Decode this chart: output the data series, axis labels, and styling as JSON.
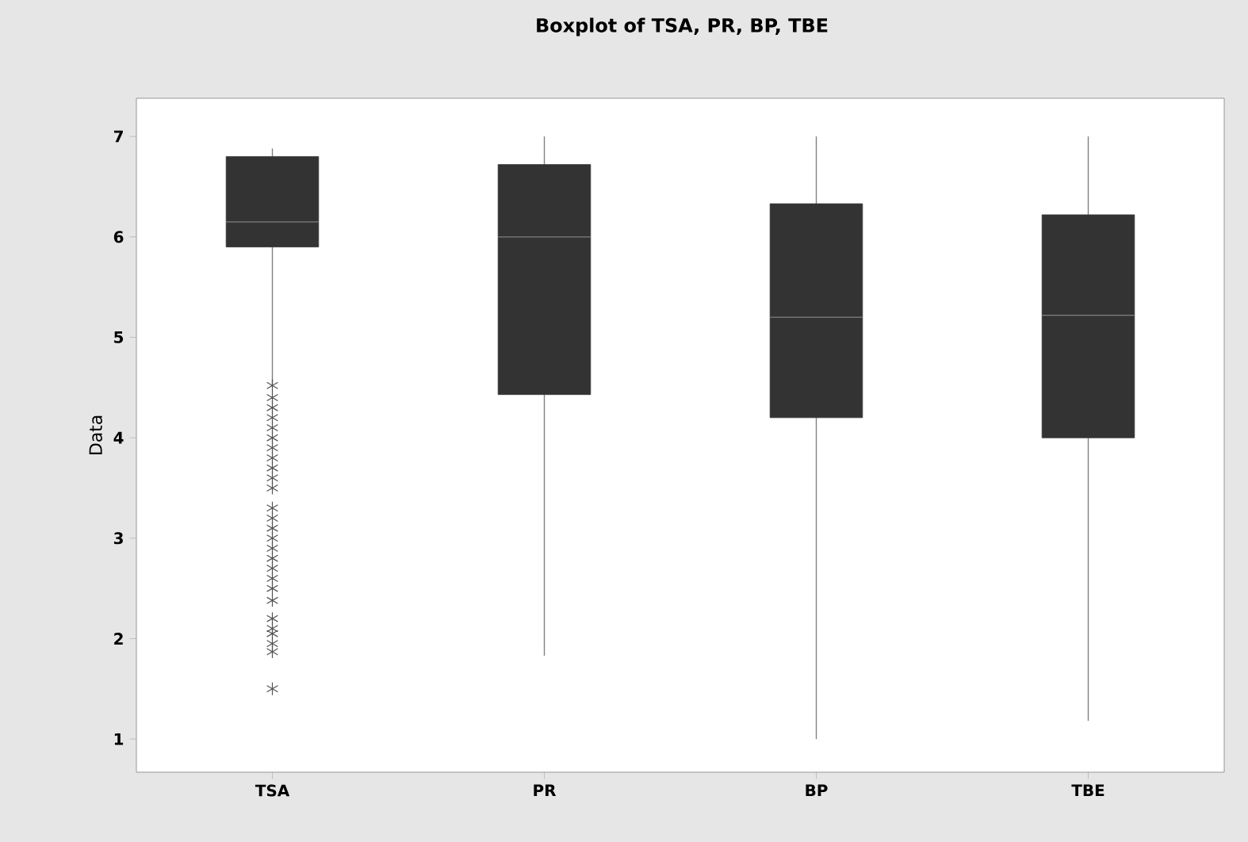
{
  "chart_data": {
    "type": "box",
    "title": "Boxplot of TSA, PR, BP, TBE",
    "ylabel": "Data",
    "categories": [
      "TSA",
      "PR",
      "BP",
      "TBE"
    ],
    "color": "#333333",
    "marker": "star",
    "boxes": [
      {
        "low": 4.52,
        "q1": 5.9,
        "median": 6.15,
        "q3": 6.8,
        "high": 6.88,
        "outliers": [
          4.52,
          4.4,
          4.3,
          4.2,
          4.1,
          4.0,
          3.9,
          3.8,
          3.7,
          3.6,
          3.5,
          3.3,
          3.2,
          3.1,
          3.0,
          2.9,
          2.8,
          2.7,
          2.6,
          2.5,
          2.38,
          2.2,
          2.1,
          2.05,
          1.95,
          1.87,
          1.5
        ]
      },
      {
        "low": 1.83,
        "q1": 4.43,
        "median": 6.0,
        "q3": 6.72,
        "high": 7.0
      },
      {
        "low": 1.0,
        "q1": 4.2,
        "median": 5.2,
        "q3": 6.33,
        "high": 7.0
      },
      {
        "low": 1.18,
        "q1": 4.0,
        "median": 5.22,
        "q3": 6.22,
        "high": 7.0
      }
    ],
    "ylim": [
      0.67,
      7.38
    ],
    "yticks": [
      1,
      2,
      3,
      4,
      5,
      6,
      7
    ]
  }
}
